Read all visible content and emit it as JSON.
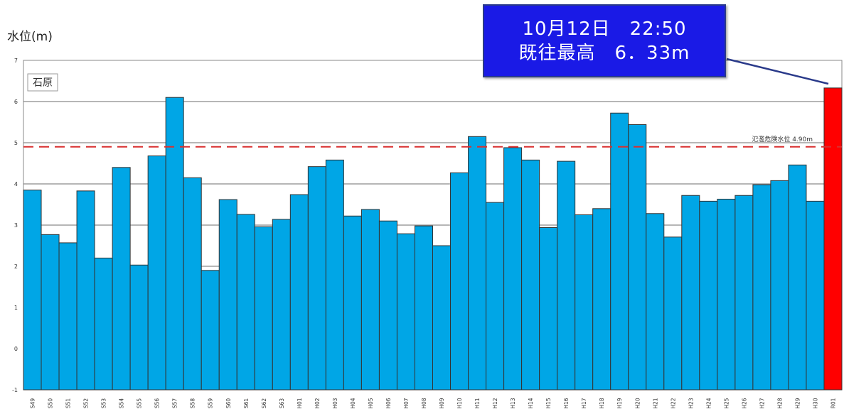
{
  "page": {
    "y_unit_label": "水位(m)",
    "callout": {
      "line1": "10月12日　22:50",
      "line2": "既往最高　6．33m"
    }
  },
  "colors": {
    "bar": "#00a6e6",
    "highlight_bar": "#ff0000",
    "threshold": "#d93030",
    "callout_bg": "#1a1ae6"
  },
  "chart_data": {
    "type": "bar",
    "station_label": "石原",
    "threshold": {
      "label": "氾濫危険水位 4.90m",
      "value": 4.9
    },
    "ylim": [
      -1,
      7
    ],
    "yticks": [
      -1,
      0,
      1,
      2,
      3,
      4,
      5,
      6,
      7
    ],
    "grid": true,
    "categories": [
      "S49",
      "S50",
      "S51",
      "S52",
      "S53",
      "S54",
      "S55",
      "S56",
      "S57",
      "S58",
      "S59",
      "S60",
      "S61",
      "S62",
      "S63",
      "H01",
      "H02",
      "H03",
      "H04",
      "H05",
      "H06",
      "H07",
      "H08",
      "H09",
      "H10",
      "H11",
      "H12",
      "H13",
      "H14",
      "H15",
      "H16",
      "H17",
      "H18",
      "H19",
      "H20",
      "H21",
      "H22",
      "H23",
      "H24",
      "H25",
      "H26",
      "H27",
      "H28",
      "H29",
      "H30",
      "R01"
    ],
    "values": [
      3.85,
      2.77,
      2.57,
      3.83,
      2.2,
      4.4,
      2.03,
      4.68,
      6.1,
      4.15,
      1.9,
      3.62,
      3.26,
      2.96,
      3.14,
      3.74,
      4.42,
      4.58,
      3.22,
      3.38,
      3.1,
      2.79,
      2.98,
      2.5,
      4.27,
      5.15,
      3.55,
      4.88,
      4.58,
      2.94,
      4.55,
      3.25,
      3.4,
      5.72,
      5.44,
      3.28,
      2.71,
      3.72,
      3.58,
      3.63,
      3.72,
      3.98,
      4.08,
      4.46,
      3.58,
      6.33
    ],
    "highlight_category": "R01"
  }
}
